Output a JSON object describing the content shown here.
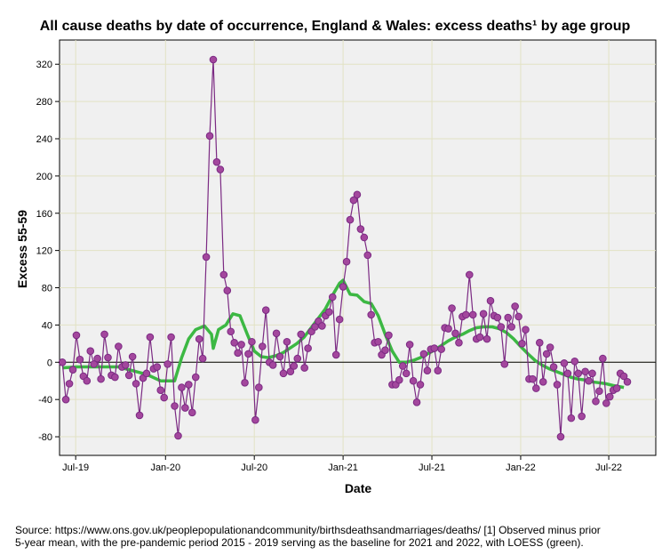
{
  "chart_data": {
    "type": "line",
    "title": "All cause deaths by date of occurrence, England & Wales: excess deaths¹ by age group",
    "ylabel": "Excess 55-59",
    "xlabel": "Date",
    "footnote": [
      "Source: https://www.ons.gov.uk/peoplepopulationandcommunity/birthsdeathsandmarriages/deaths/  [1] Observed minus prior",
      "5-year mean, with the pre-pandemic period 2015 - 2019 serving as the baseline for 2021 and 2022, with LOESS (green)."
    ],
    "xlim": [
      -0.8,
      169.1
    ],
    "xticks": [
      {
        "value": 3.8,
        "label": "Jul-19"
      },
      {
        "value": 29.4,
        "label": "Jan-20"
      },
      {
        "value": 54.7,
        "label": "Jul-20"
      },
      {
        "value": 80,
        "label": "Jan-21"
      },
      {
        "value": 105.3,
        "label": "Jul-21"
      },
      {
        "value": 130.6,
        "label": "Jan-22"
      },
      {
        "value": 155.7,
        "label": "Jul-22"
      }
    ],
    "ylim": [
      -100,
      346
    ],
    "yticks": [
      -80,
      -40,
      0,
      40,
      80,
      120,
      160,
      200,
      240,
      280,
      320
    ],
    "grid": true,
    "hline": 0,
    "series": [
      {
        "name": "Excess deaths",
        "color": "#7b2a83",
        "marker_color": "#a3479d",
        "markers": true,
        "x": [
          0,
          1,
          2,
          3,
          4,
          5,
          6,
          7,
          8,
          9,
          10,
          11,
          12,
          13,
          14,
          15,
          16,
          17,
          18,
          19,
          20,
          21,
          22,
          23,
          24,
          25,
          26,
          27,
          28,
          29,
          30,
          31,
          32,
          33,
          34,
          35,
          36,
          37,
          38,
          39,
          40,
          41,
          42,
          43,
          44,
          45,
          46,
          47,
          48,
          49,
          50,
          51,
          52,
          53,
          54,
          55,
          56,
          57,
          58,
          59,
          60,
          61,
          62,
          63,
          64,
          65,
          66,
          67,
          68,
          69,
          70,
          71,
          72,
          73,
          74,
          75,
          76,
          77,
          78,
          79,
          80,
          81,
          82,
          83,
          84,
          85,
          86,
          87,
          88,
          89,
          90,
          91,
          92,
          93,
          94,
          95,
          96,
          97,
          98,
          99,
          100,
          101,
          102,
          103,
          104,
          105,
          106,
          107,
          108,
          109,
          110,
          111,
          112,
          113,
          114,
          115,
          116,
          117,
          118,
          119,
          120,
          121,
          122,
          123,
          124,
          125,
          126,
          127,
          128,
          129,
          130,
          131,
          132,
          133,
          134,
          135,
          136,
          137,
          138,
          139,
          140,
          141,
          142,
          143,
          144,
          145,
          146,
          147,
          148,
          149,
          150,
          151,
          152,
          153,
          154,
          155,
          156,
          157,
          158,
          159,
          160,
          161
        ],
        "values": [
          0,
          -40,
          -23,
          -8,
          29,
          3,
          -15,
          -20,
          12,
          -2,
          4,
          -18,
          30,
          5,
          -14,
          -16,
          17,
          -5,
          -3,
          -14,
          6,
          -23,
          -57,
          -17,
          -12,
          27,
          -7,
          -5,
          -30,
          -38,
          -2,
          27,
          -47,
          -79,
          -27,
          -49,
          -24,
          -54,
          -16,
          25,
          4,
          113,
          243,
          325,
          215,
          207,
          94,
          77,
          33,
          21,
          10,
          19,
          -22,
          9,
          22,
          -62,
          -27,
          17,
          56,
          0,
          -3,
          31,
          6,
          -12,
          22,
          -10,
          -4,
          4,
          30,
          -6,
          15,
          33,
          38,
          44,
          39,
          50,
          54,
          70,
          8,
          46,
          81,
          108,
          153,
          174,
          180,
          143,
          134,
          115,
          51,
          21,
          22,
          8,
          13,
          29,
          -24,
          -24,
          -19,
          -4,
          -12,
          19,
          -20,
          -43,
          -24,
          9,
          -9,
          14,
          15,
          -9,
          14,
          37,
          36,
          58,
          31,
          21,
          49,
          51,
          94,
          51,
          25,
          27,
          52,
          25,
          66,
          50,
          48,
          38,
          -2,
          48,
          38,
          60,
          49,
          20,
          35,
          -18,
          -18,
          -28,
          21,
          -21,
          9,
          16,
          -5,
          -24,
          -80,
          -1,
          -12,
          -60,
          1,
          -12,
          -58,
          -10,
          -20,
          -12,
          -42,
          -31,
          4,
          -44,
          -37,
          -30,
          -28,
          -12,
          -15,
          -21
        ]
      },
      {
        "name": "LOESS",
        "color": "#3cb843",
        "markers": false,
        "x": [
          0,
          4,
          8,
          12,
          16,
          20,
          24,
          28,
          32,
          34,
          36,
          38,
          40.5,
          42.5,
          43,
          44.5,
          46.6,
          48.6,
          50.6,
          52.7,
          54.7,
          56.7,
          58.7,
          60.8,
          62.8,
          64.8,
          66.8,
          68.9,
          70.9,
          72.9,
          74.9,
          77,
          79,
          80,
          82,
          84,
          86,
          88,
          90,
          92,
          94,
          96,
          98,
          100,
          102,
          104,
          106,
          108,
          110,
          112,
          114,
          116,
          118,
          120,
          122.5,
          124.5,
          126.5,
          128.6,
          130.6,
          132.7,
          134.7,
          136.7,
          138.7,
          140.8,
          142.8,
          144.8,
          146.8,
          148.9,
          150.9,
          152.9,
          154.9,
          157,
          160
        ],
        "values": [
          -6,
          -5,
          -5,
          -5,
          -5,
          -9,
          -13,
          -20,
          -20,
          5,
          25,
          35,
          39,
          30,
          15,
          35,
          40,
          52,
          50,
          30,
          12,
          6,
          5,
          7,
          10,
          15,
          20,
          27,
          37,
          47,
          57,
          72,
          85,
          88,
          73,
          72,
          65,
          63,
          50,
          30,
          12,
          0,
          0,
          2,
          5,
          9,
          13,
          18,
          23,
          27,
          30,
          34,
          37,
          38,
          38,
          36,
          32,
          25,
          17,
          9,
          2,
          -3,
          -7,
          -10,
          -13,
          -16,
          -18,
          -19,
          -21,
          -22,
          -23,
          -25,
          -27
        ]
      }
    ]
  }
}
